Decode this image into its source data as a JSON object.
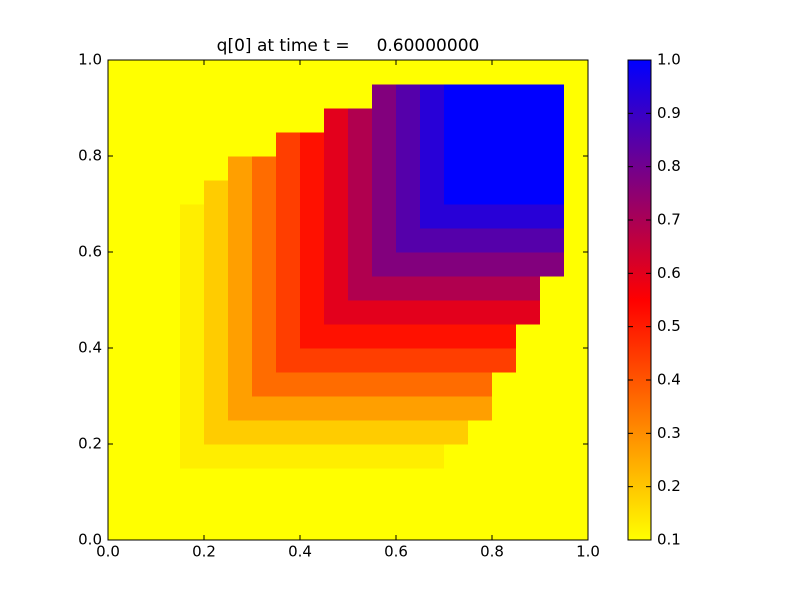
{
  "chart_data": {
    "type": "heatmap",
    "title": "q[0] at time t =     0.60000000",
    "xlim": [
      0,
      1
    ],
    "ylim": [
      0,
      1
    ],
    "xticks": [
      {
        "value": 0,
        "label": "0.0"
      },
      0.2,
      0.4,
      0.6,
      0.8,
      {
        "value": 1,
        "label": "1.0"
      }
    ],
    "yticks": [
      {
        "value": 0,
        "label": "0.0"
      },
      0.2,
      0.4,
      0.6,
      0.8,
      {
        "value": 1,
        "label": "1.0"
      }
    ],
    "colormap": [
      "#ffff00",
      "#ff0000",
      "#0000ff"
    ],
    "clim": [
      0.1,
      1
    ],
    "colorbar_ticks": [
      0.1,
      0.2,
      0.3,
      0.4,
      0.5,
      0.6,
      0.7,
      0.8,
      0.9,
      {
        "value": 1,
        "label": "1.0"
      }
    ],
    "z": [
      [
        0.1,
        0.1,
        0.1,
        0.1,
        0.1,
        0.1,
        0.1,
        0.1,
        0.1,
        0.1,
        0.1,
        0.1,
        0.1,
        0.1,
        0.1,
        0.1,
        0.1,
        0.1,
        0.1,
        0.1
      ],
      [
        0.1,
        0.1,
        0.1,
        0.1,
        0.1,
        0.1,
        0.1,
        0.1,
        0.1,
        0.1,
        0.1,
        0.1,
        0.1,
        0.1,
        0.1,
        0.1,
        0.1,
        0.1,
        0.1,
        0.1
      ],
      [
        0.1,
        0.1,
        0.1,
        0.1,
        0.1,
        0.1,
        0.1,
        0.1,
        0.1,
        0.1,
        0.1,
        0.1,
        0.1,
        0.1,
        0.1,
        0.1,
        0.1,
        0.1,
        0.1,
        0.1
      ],
      [
        0.1,
        0.1,
        0.1,
        0.13,
        0.13,
        0.13,
        0.13,
        0.13,
        0.13,
        0.13,
        0.13,
        0.13,
        0.13,
        0.13,
        0.1,
        0.1,
        0.1,
        0.1,
        0.1,
        0.1
      ],
      [
        0.1,
        0.1,
        0.1,
        0.13,
        0.19,
        0.19,
        0.19,
        0.19,
        0.19,
        0.19,
        0.19,
        0.19,
        0.19,
        0.19,
        0.19,
        0.1,
        0.1,
        0.1,
        0.1,
        0.1
      ],
      [
        0.1,
        0.1,
        0.1,
        0.13,
        0.19,
        0.27,
        0.27,
        0.27,
        0.27,
        0.27,
        0.27,
        0.27,
        0.27,
        0.27,
        0.27,
        0.27,
        0.1,
        0.1,
        0.1,
        0.1
      ],
      [
        0.1,
        0.1,
        0.1,
        0.13,
        0.19,
        0.27,
        0.36,
        0.36,
        0.36,
        0.36,
        0.36,
        0.36,
        0.36,
        0.36,
        0.36,
        0.36,
        0.1,
        0.1,
        0.1,
        0.1
      ],
      [
        0.1,
        0.1,
        0.1,
        0.13,
        0.19,
        0.27,
        0.36,
        0.44,
        0.44,
        0.44,
        0.44,
        0.44,
        0.44,
        0.44,
        0.44,
        0.44,
        0.44,
        0.1,
        0.1,
        0.1
      ],
      [
        0.1,
        0.1,
        0.1,
        0.13,
        0.19,
        0.27,
        0.36,
        0.44,
        0.52,
        0.52,
        0.52,
        0.52,
        0.52,
        0.52,
        0.52,
        0.52,
        0.52,
        0.1,
        0.1,
        0.1
      ],
      [
        0.1,
        0.1,
        0.1,
        0.13,
        0.19,
        0.27,
        0.36,
        0.44,
        0.52,
        0.6,
        0.6,
        0.6,
        0.6,
        0.6,
        0.6,
        0.6,
        0.6,
        0.6,
        0.1,
        0.1
      ],
      [
        0.1,
        0.1,
        0.1,
        0.13,
        0.19,
        0.27,
        0.36,
        0.44,
        0.52,
        0.6,
        0.69,
        0.69,
        0.69,
        0.69,
        0.69,
        0.69,
        0.69,
        0.69,
        0.1,
        0.1
      ],
      [
        0.1,
        0.1,
        0.1,
        0.13,
        0.19,
        0.27,
        0.36,
        0.44,
        0.52,
        0.6,
        0.69,
        0.77,
        0.77,
        0.77,
        0.77,
        0.77,
        0.77,
        0.77,
        0.77,
        0.1
      ],
      [
        0.1,
        0.1,
        0.1,
        0.13,
        0.19,
        0.27,
        0.36,
        0.44,
        0.52,
        0.6,
        0.69,
        0.77,
        0.85,
        0.85,
        0.85,
        0.85,
        0.85,
        0.85,
        0.85,
        0.1
      ],
      [
        0.1,
        0.1,
        0.1,
        0.13,
        0.19,
        0.27,
        0.36,
        0.44,
        0.52,
        0.6,
        0.69,
        0.77,
        0.85,
        0.93,
        0.93,
        0.93,
        0.93,
        0.93,
        0.93,
        0.1
      ],
      [
        0.1,
        0.1,
        0.1,
        0.1,
        0.19,
        0.27,
        0.36,
        0.44,
        0.52,
        0.6,
        0.69,
        0.77,
        0.85,
        0.93,
        1,
        1,
        1,
        1,
        1,
        0.1
      ],
      [
        0.1,
        0.1,
        0.1,
        0.1,
        0.1,
        0.27,
        0.36,
        0.44,
        0.52,
        0.6,
        0.69,
        0.77,
        0.85,
        0.93,
        1,
        1,
        1,
        1,
        1,
        0.1
      ],
      [
        0.1,
        0.1,
        0.1,
        0.1,
        0.1,
        0.1,
        0.1,
        0.44,
        0.52,
        0.6,
        0.69,
        0.77,
        0.85,
        0.93,
        1,
        1,
        1,
        1,
        1,
        0.1
      ],
      [
        0.1,
        0.1,
        0.1,
        0.1,
        0.1,
        0.1,
        0.1,
        0.1,
        0.1,
        0.6,
        0.69,
        0.77,
        0.85,
        0.93,
        1,
        1,
        1,
        1,
        1,
        0.1
      ],
      [
        0.1,
        0.1,
        0.1,
        0.1,
        0.1,
        0.1,
        0.1,
        0.1,
        0.1,
        0.1,
        0.1,
        0.77,
        0.85,
        0.93,
        1,
        1,
        1,
        1,
        1,
        0.1
      ],
      [
        0.1,
        0.1,
        0.1,
        0.1,
        0.1,
        0.1,
        0.1,
        0.1,
        0.1,
        0.1,
        0.1,
        0.1,
        0.1,
        0.1,
        0.1,
        0.1,
        0.1,
        0.1,
        0.1,
        0.1
      ]
    ]
  }
}
